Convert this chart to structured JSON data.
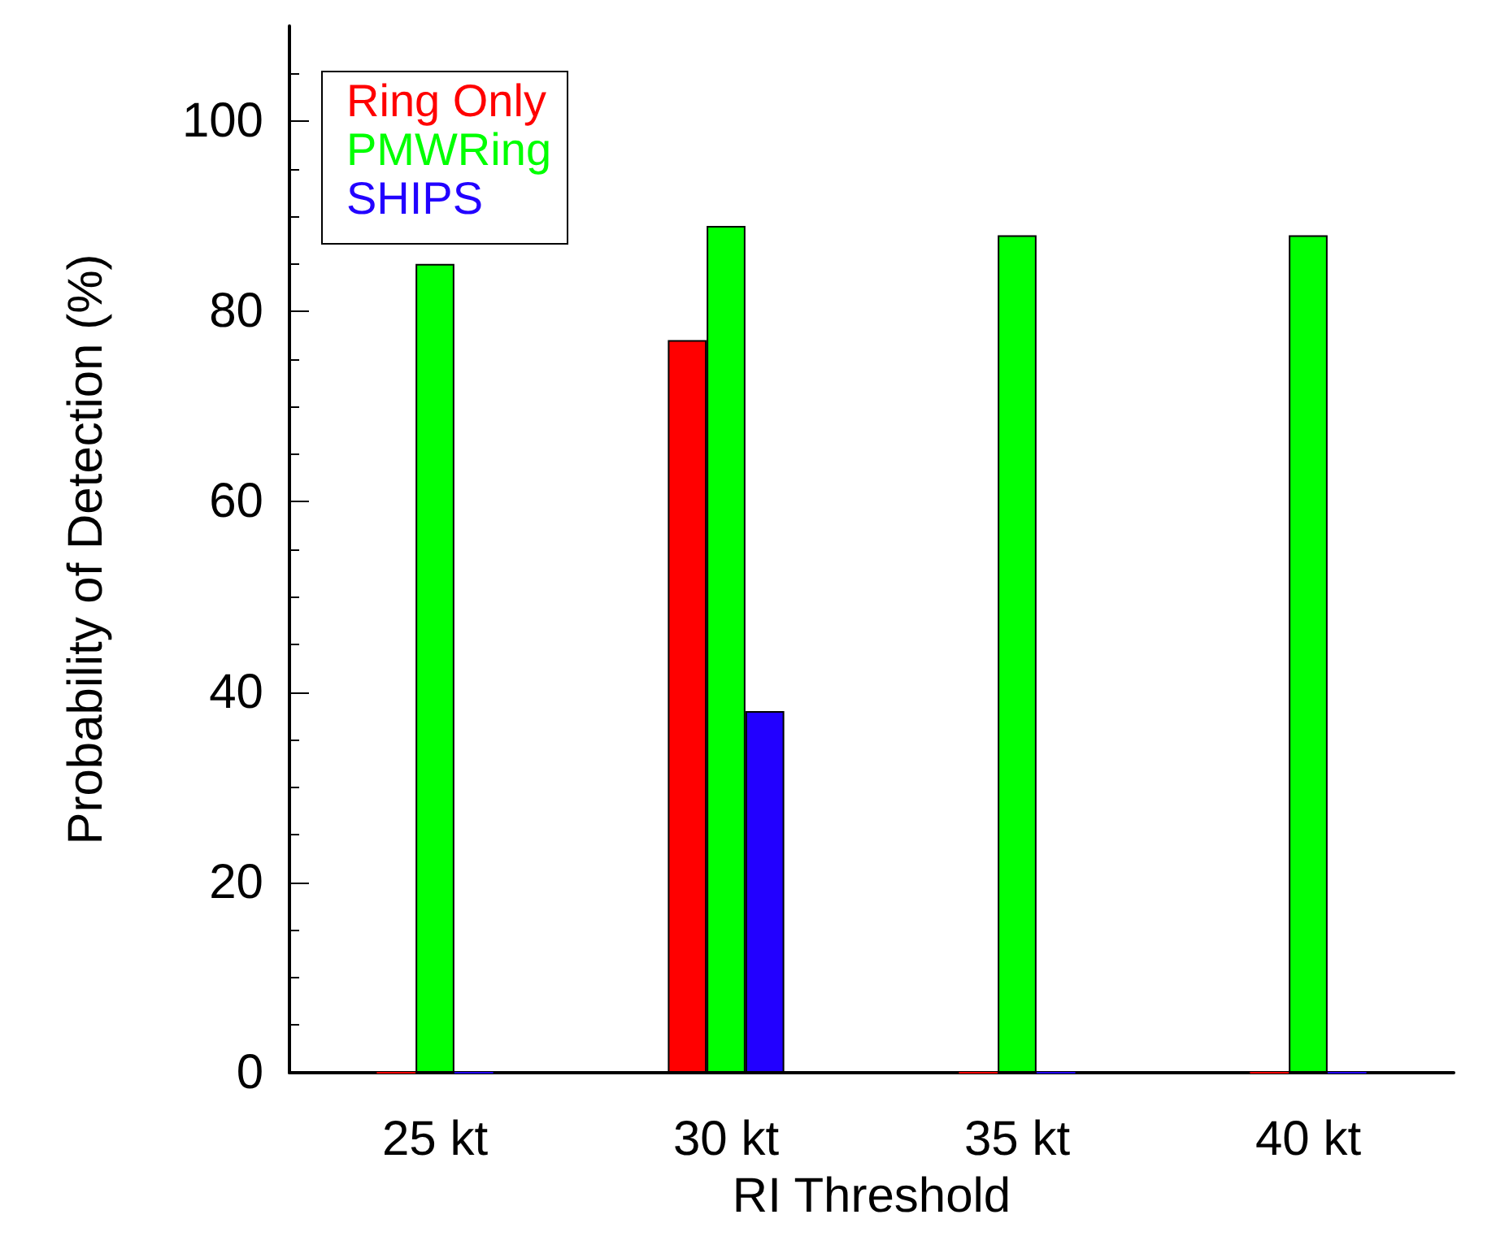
{
  "chart_data": {
    "type": "bar",
    "xlabel": "RI Threshold",
    "ylabel": "Probability of Detection (%)",
    "categories": [
      "25 kt",
      "30 kt",
      "35 kt",
      "40 kt"
    ],
    "series": [
      {
        "name": "Ring Only",
        "color": "#ff0000",
        "values": [
          0,
          77,
          0,
          0
        ]
      },
      {
        "name": "PMWRing",
        "color": "#00ff00",
        "values": [
          85,
          89,
          88,
          88
        ]
      },
      {
        "name": "SHIPS",
        "color": "#2200ff",
        "values": [
          0,
          38,
          0,
          0
        ]
      }
    ],
    "ylim": [
      0,
      110
    ],
    "yticks": [
      0,
      20,
      40,
      60,
      80,
      100
    ],
    "grid": false,
    "legend": "top left"
  }
}
